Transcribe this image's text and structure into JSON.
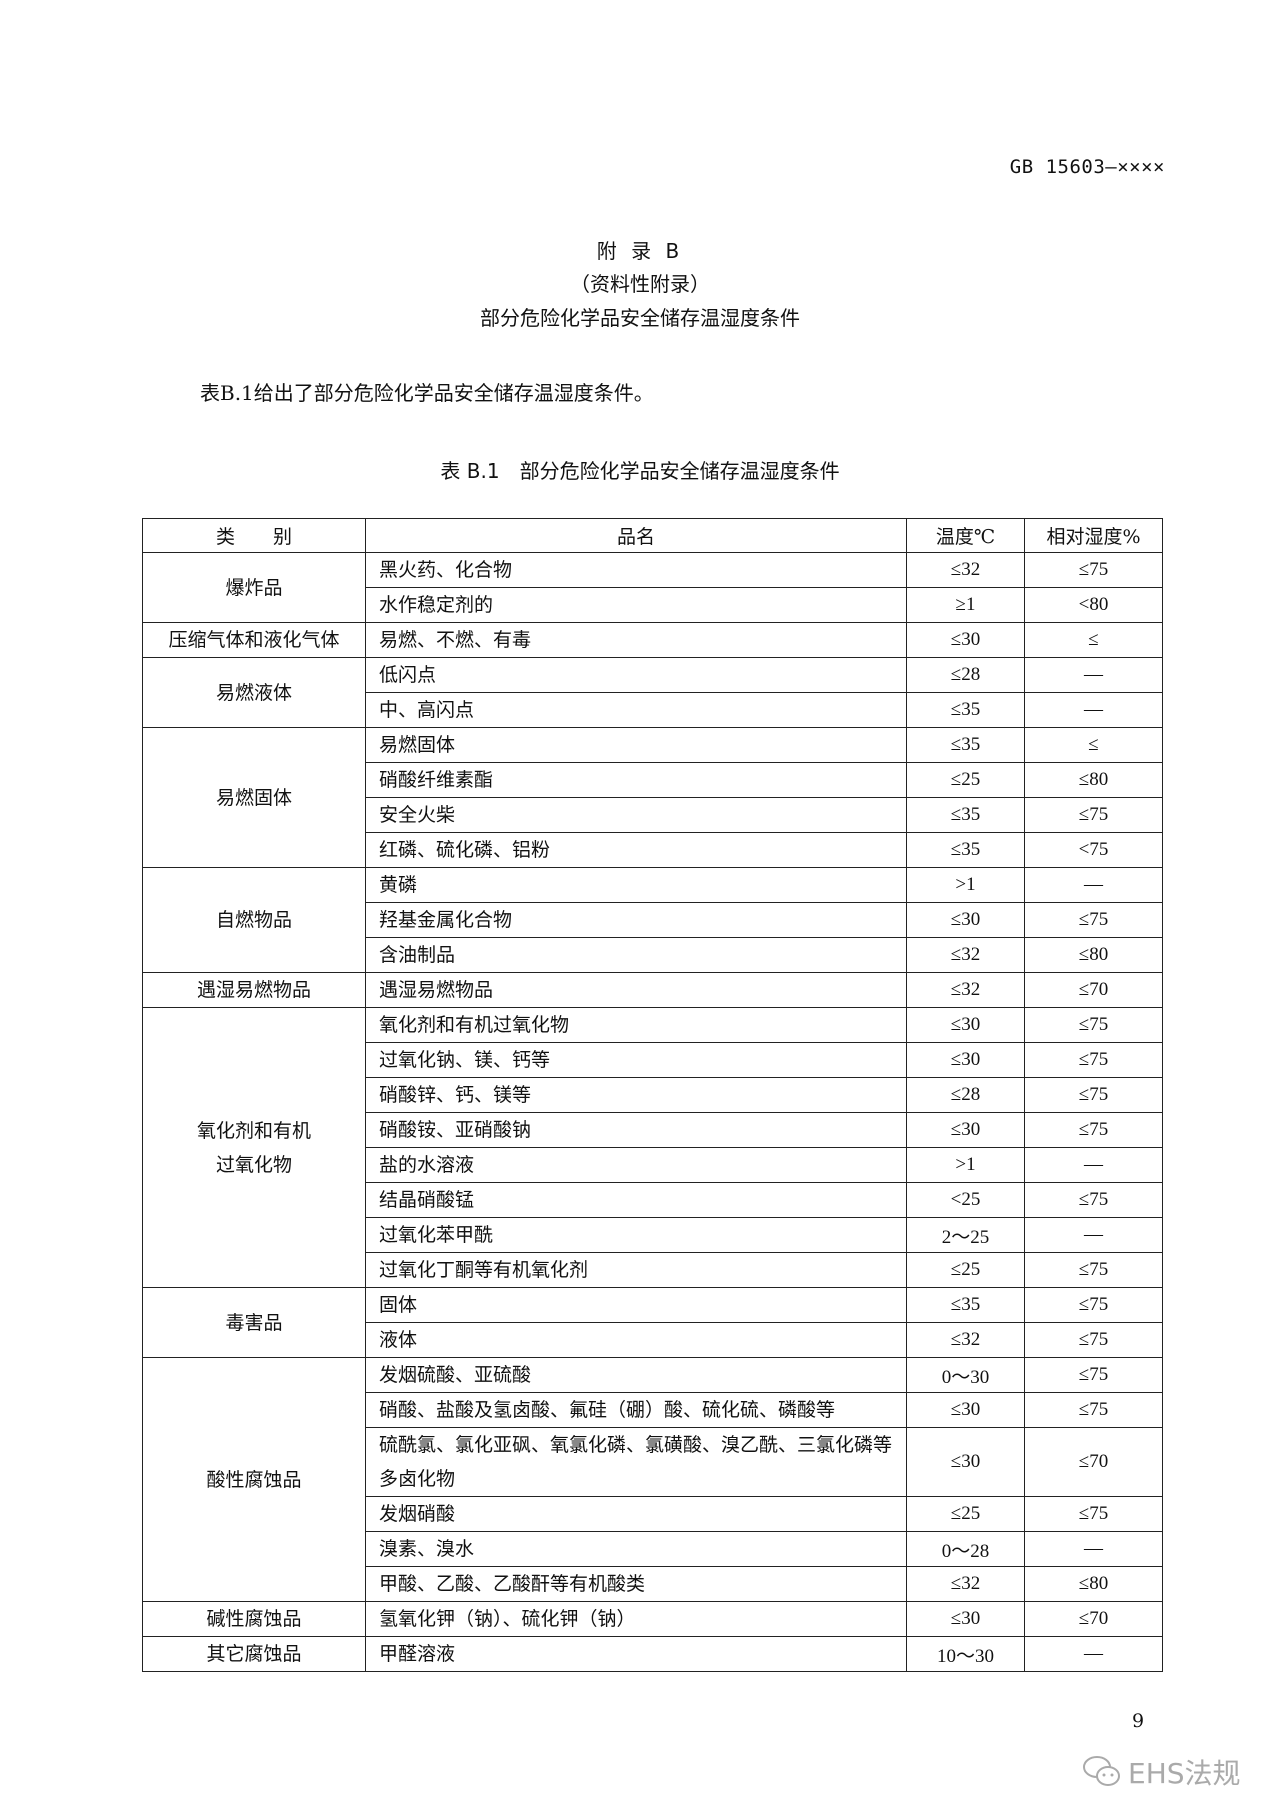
{
  "header": {
    "std_code": "GB 15603—××××"
  },
  "appendix": {
    "title": "附 录 B",
    "subtitle": "（资料性附录）",
    "heading": "部分危险化学品安全储存温湿度条件"
  },
  "intro": "表B.1给出了部分危险化学品安全储存温湿度条件。",
  "table": {
    "caption": "表 B.1　部分危险化学品安全储存温湿度条件",
    "columns": [
      "类　　别",
      "品名",
      "温度℃",
      "相对湿度%"
    ],
    "groups": [
      {
        "category": "爆炸品",
        "rows": [
          [
            "黑火药、化合物",
            "≤32",
            "≤75"
          ],
          [
            "水作稳定剂的",
            "≥1",
            "<80"
          ]
        ]
      },
      {
        "category": "压缩气体和液化气体",
        "rows": [
          [
            "易燃、不燃、有毒",
            "≤30",
            "≤"
          ]
        ]
      },
      {
        "category": "易燃液体",
        "rows": [
          [
            "低闪点",
            "≤28",
            "—"
          ],
          [
            "中、高闪点",
            "≤35",
            "—"
          ]
        ]
      },
      {
        "category": "易燃固体",
        "rows": [
          [
            "易燃固体",
            "≤35",
            "≤"
          ],
          [
            "硝酸纤维素酯",
            "≤25",
            "≤80"
          ],
          [
            "安全火柴",
            "≤35",
            "≤75"
          ],
          [
            "红磷、硫化磷、铝粉",
            "≤35",
            "<75"
          ]
        ]
      },
      {
        "category": "自燃物品",
        "rows": [
          [
            "黄磷",
            ">1",
            "—"
          ],
          [
            "羟基金属化合物",
            "≤30",
            "≤75"
          ],
          [
            "含油制品",
            "≤32",
            "≤80"
          ]
        ]
      },
      {
        "category": "遇湿易燃物品",
        "rows": [
          [
            "遇湿易燃物品",
            "≤32",
            "≤70"
          ]
        ]
      },
      {
        "category": "氧化剂和有机\n过氧化物",
        "rows": [
          [
            "氧化剂和有机过氧化物",
            "≤30",
            "≤75"
          ],
          [
            "过氧化钠、镁、钙等",
            "≤30",
            "≤75"
          ],
          [
            "硝酸锌、钙、镁等",
            "≤28",
            "≤75"
          ],
          [
            "硝酸铵、亚硝酸钠",
            "≤30",
            "≤75"
          ],
          [
            "盐的水溶液",
            ">1",
            "—"
          ],
          [
            "结晶硝酸锰",
            "<25",
            "≤75"
          ],
          [
            "过氧化苯甲酰",
            "2～25",
            "—"
          ],
          [
            "过氧化丁酮等有机氧化剂",
            "≤25",
            "≤75"
          ]
        ]
      },
      {
        "category": "毒害品",
        "rows": [
          [
            "固体",
            "≤35",
            "≤75"
          ],
          [
            "液体",
            "≤32",
            "≤75"
          ]
        ]
      },
      {
        "category": "酸性腐蚀品",
        "rows": [
          [
            "发烟硫酸、亚硫酸",
            "0～30",
            "≤75"
          ],
          [
            "硝酸、盐酸及氢卤酸、氟硅（硼）酸、硫化硫、磷酸等",
            "≤30",
            "≤75"
          ],
          [
            "硫酰氯、氯化亚砜、氧氯化磷、氯磺酸、溴乙酰、三氯化磷等多卤化物",
            "≤30",
            "≤70"
          ],
          [
            "发烟硝酸",
            "≤25",
            "≤75"
          ],
          [
            "溴素、溴水",
            "0～28",
            "—"
          ],
          [
            "甲酸、乙酸、乙酸酐等有机酸类",
            "≤32",
            "≤80"
          ]
        ]
      },
      {
        "category": "碱性腐蚀品",
        "rows": [
          [
            "氢氧化钾（钠）、硫化钾（钠）",
            "≤30",
            "≤70"
          ]
        ]
      },
      {
        "category": "其它腐蚀品",
        "rows": [
          [
            "甲醛溶液",
            "10～30",
            "—"
          ]
        ]
      }
    ]
  },
  "footer": {
    "page_number": "9",
    "watermark": "EHS法规",
    "watermark_icon": "wechat-icon"
  }
}
